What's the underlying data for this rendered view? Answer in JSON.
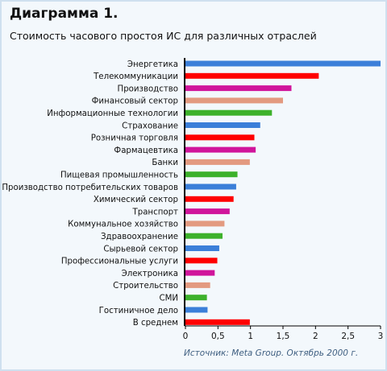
{
  "header": {
    "title": "Диаграмма 1.",
    "subtitle": "Стоимость часового простоя ИС для различных отраслей"
  },
  "footer": {
    "source": "Источник: Meta Group. Октябрь 2000 г."
  },
  "colors": {
    "blue": "#3b7fd9",
    "red": "#ff0000",
    "magenta": "#d0159b",
    "salmon": "#e39a80",
    "green": "#3db12b",
    "axis": "#000000",
    "background": "#f3f8fc",
    "border": "#cfe0ef"
  },
  "chart_data": {
    "type": "bar",
    "orientation": "horizontal",
    "title": "Диаграмма 1.",
    "subtitle": "Стоимость часового простоя ИС для различных отраслей",
    "xlim": [
      0,
      3
    ],
    "xticks": [
      "0",
      "0,5",
      "1",
      "1,5",
      "2",
      "2,5",
      "3"
    ],
    "xtick_values": [
      0,
      0.5,
      1,
      1.5,
      2,
      2.5,
      3
    ],
    "grid": false,
    "legend": "none",
    "categories": [
      "Энергетика",
      "Телекоммуникации",
      "Производство",
      "Финансовый сектор",
      "Информационные технологии",
      "Страхование",
      "Розничная торговля",
      "Фармацевтика",
      "Банки",
      "Пищевая промышленность",
      "Производство потребительских товаров",
      "Химический сектор",
      "Транспорт",
      "Коммунальное хозяйство",
      "Здравоохранение",
      "Сырьевой сектор",
      "Профессиональные услуги",
      "Электроника",
      "Строительство",
      "СМИ",
      "Гостиничное дело",
      "В среднем"
    ],
    "values": [
      3.0,
      2.05,
      1.63,
      1.5,
      1.33,
      1.15,
      1.06,
      1.08,
      0.99,
      0.8,
      0.78,
      0.74,
      0.68,
      0.6,
      0.57,
      0.52,
      0.49,
      0.45,
      0.38,
      0.33,
      0.34,
      0.99
    ],
    "bar_colors": [
      "#3b7fd9",
      "#ff0000",
      "#d0159b",
      "#e39a80",
      "#3db12b",
      "#3b7fd9",
      "#ff0000",
      "#d0159b",
      "#e39a80",
      "#3db12b",
      "#3b7fd9",
      "#ff0000",
      "#d0159b",
      "#e39a80",
      "#3db12b",
      "#3b7fd9",
      "#ff0000",
      "#d0159b",
      "#e39a80",
      "#3db12b",
      "#3b7fd9",
      "#ff0000"
    ]
  }
}
